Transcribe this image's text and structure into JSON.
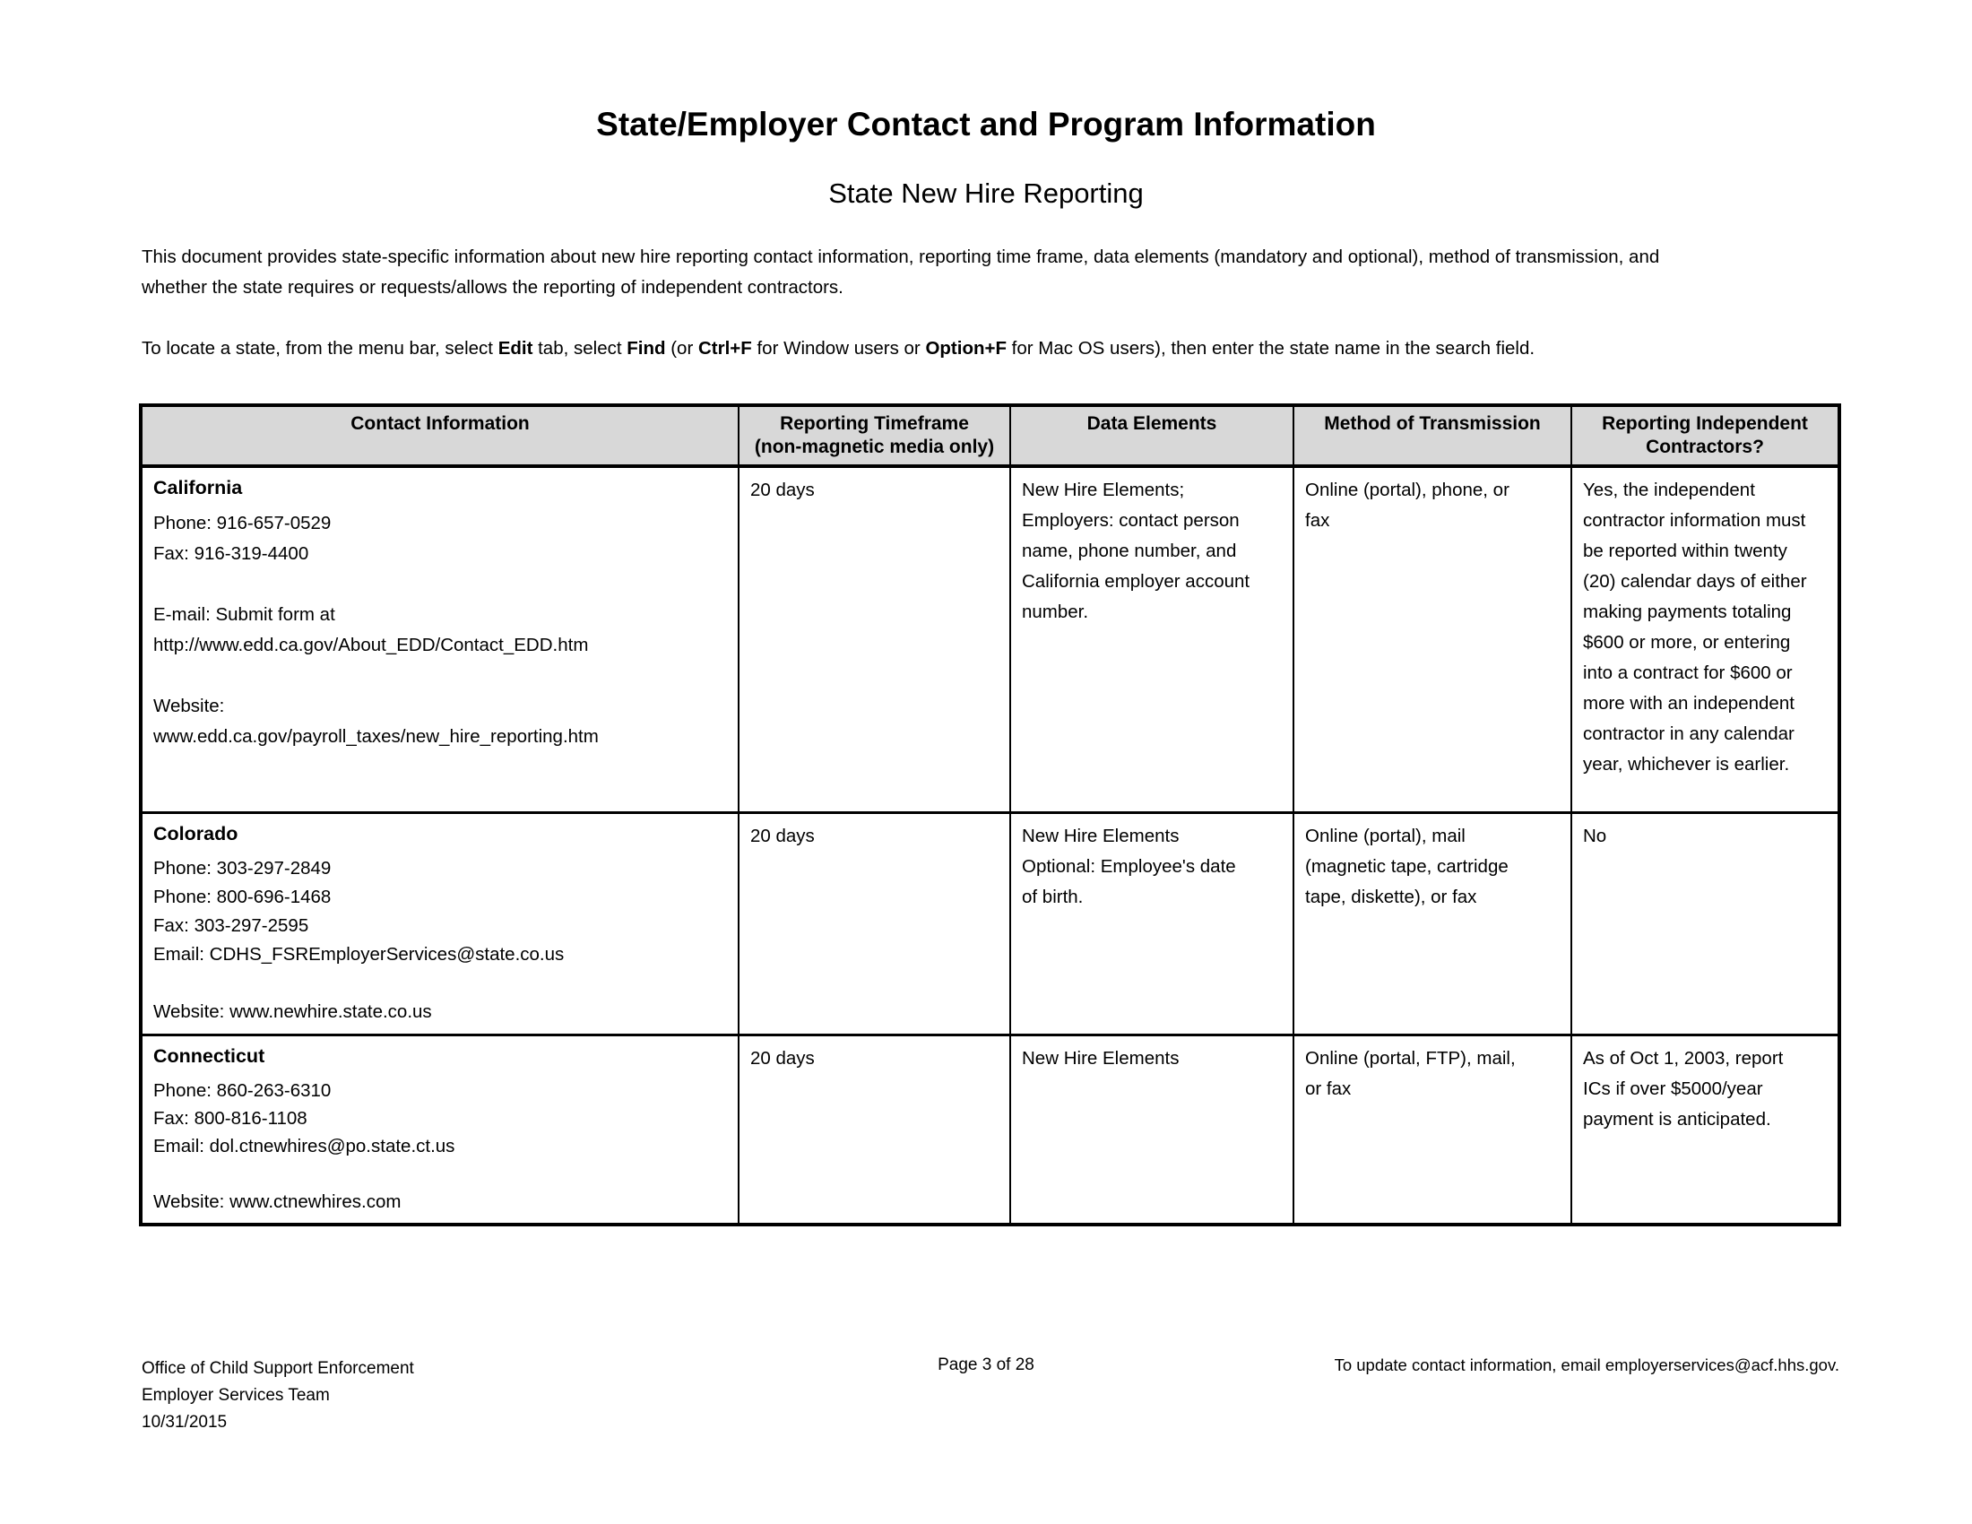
{
  "document": {
    "title": "State/Employer Contact and Program Information",
    "subtitle": "State New Hire Reporting",
    "intro_paragraph": "This document provides state-specific information about new hire reporting contact information, reporting time frame, data elements (mandatory and optional), method of transmission, and\nwhether the state requires or requests/allows the reporting of independent contractors.",
    "search_instructions": {
      "s0": "To locate a state, from the menu bar, select ",
      "b0": "Edit",
      "s1": " tab, select ",
      "b1": "Find",
      "s2": " (or ",
      "b2": "Ctrl+F",
      "s3": " for Window users or ",
      "b3": "Option+F",
      "s4": " for Mac OS users), then enter the state name in the search field."
    }
  },
  "table": {
    "headers": {
      "contact": "Contact Information",
      "timeframe": "Reporting Timeframe\n(non-magnetic media only)",
      "data_elements": "Data Elements",
      "transmission": "Method of Transmission",
      "independent_contractors": "Reporting Independent\nContractors?"
    },
    "rows": [
      {
        "state": "California",
        "contact": "Phone: 916-657-0529\nFax: 916-319-4400\n\nE-mail: Submit form at\nhttp://www.edd.ca.gov/About_EDD/Contact_EDD.htm\n\nWebsite:\nwww.edd.ca.gov/payroll_taxes/new_hire_reporting.htm",
        "timeframe": "20 days",
        "data_elements": "New Hire Elements;\nEmployers: contact person\nname, phone number, and\nCalifornia employer account\nnumber.",
        "transmission": "Online (portal), phone, or\nfax",
        "independent_contractors": "Yes, the independent\ncontractor information must\nbe reported within twenty\n(20) calendar days of either\nmaking payments totaling\n$600 or more, or entering\ninto a contract for $600 or\nmore with an independent\ncontractor in any calendar\nyear, whichever is earlier."
      },
      {
        "state": "Colorado",
        "contact": "Phone: 303-297-2849\nPhone: 800-696-1468\nFax: 303-297-2595\nEmail: CDHS_FSREmployerServices@state.co.us\n\nWebsite: www.newhire.state.co.us",
        "timeframe": "20 days",
        "data_elements": "New Hire Elements\nOptional: Employee's date\nof birth.",
        "transmission": "Online (portal), mail\n(magnetic tape, cartridge\ntape, diskette), or fax",
        "independent_contractors": "No"
      },
      {
        "state": "Connecticut",
        "contact": "Phone: 860-263-6310\nFax: 800-816-1108\nEmail: dol.ctnewhires@po.state.ct.us\n\nWebsite: www.ctnewhires.com",
        "timeframe": "20 days",
        "data_elements": "New Hire Elements",
        "transmission": "Online (portal, FTP), mail,\nor fax",
        "independent_contractors": "As of Oct 1, 2003, report\nICs if over $5000/year\npayment is anticipated."
      }
    ]
  },
  "footer": {
    "left": "Office of Child Support Enforcement\nEmployer Services Team\n10/31/2015",
    "page": "Page 3 of 28",
    "right": "To update contact information, email employerservices@acf.hhs.gov."
  }
}
